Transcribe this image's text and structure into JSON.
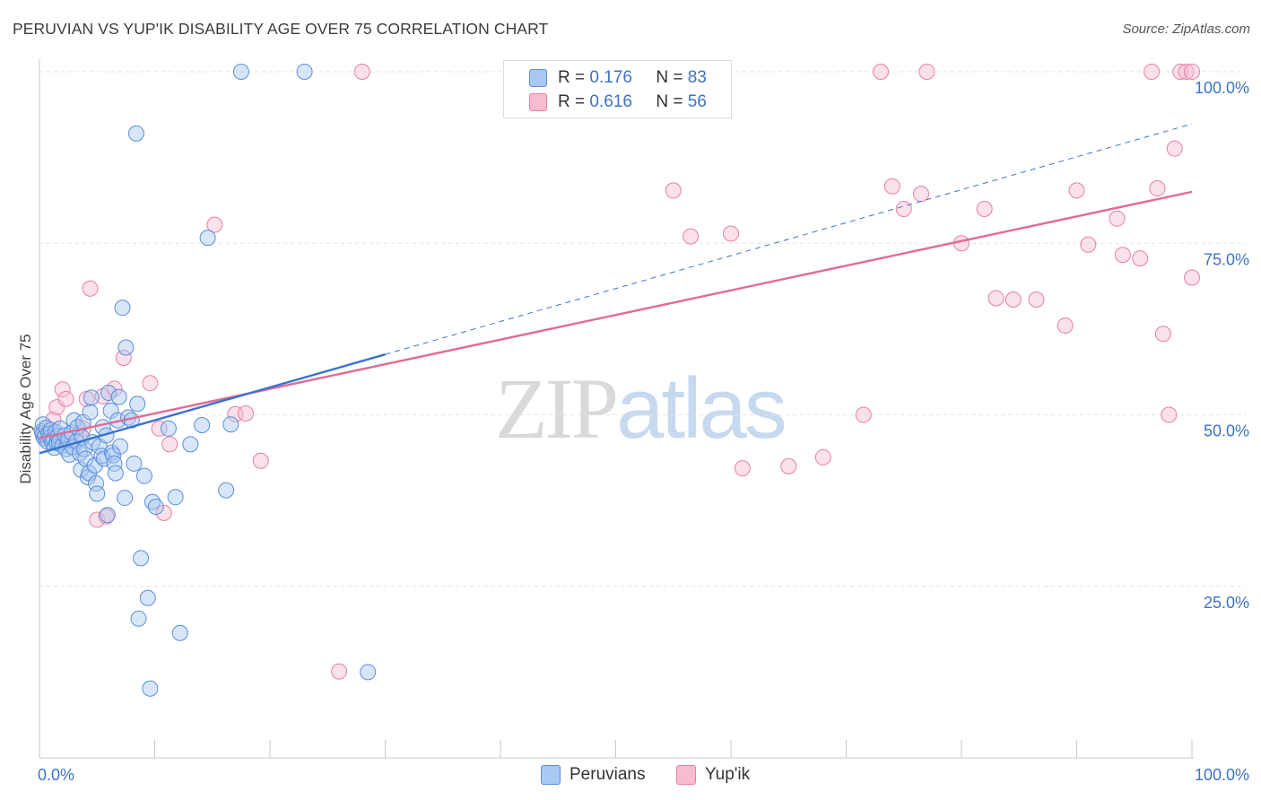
{
  "header": {
    "title": "PERUVIAN VS YUP'IK DISABILITY AGE OVER 75 CORRELATION CHART",
    "source": "Source: ZipAtlas.com"
  },
  "watermark": {
    "zip": "ZIP",
    "atlas": "atlas"
  },
  "legend_top": [
    {
      "r_label": "R =",
      "r_value": "0.176",
      "n_label": "N =",
      "n_value": "83"
    },
    {
      "r_label": "R =",
      "r_value": "0.616",
      "n_label": "N =",
      "n_value": "56"
    }
  ],
  "legend_bottom": [
    "Peruvians",
    "Yup'ik"
  ],
  "chart_data": {
    "type": "scatter",
    "title": "PERUVIAN VS YUP'IK DISABILITY AGE OVER 75 CORRELATION CHART",
    "xlabel": "",
    "ylabel": "Disability Age Over 75",
    "xlim": [
      0,
      100
    ],
    "ylim": [
      0,
      100
    ],
    "x_tick_labels": [
      "0.0%",
      "100.0%"
    ],
    "y_ticks": [
      25,
      50,
      75,
      100
    ],
    "y_tick_labels": [
      "25.0%",
      "50.0%",
      "75.0%",
      "100.0%"
    ],
    "grid": "horizontal dashed",
    "legend_position": "top-center",
    "colors": {
      "Peruvians": "#5b8fd9",
      "Yup'ik": "#e97fa3",
      "peruvians_line": "#3a73d0",
      "yupik_line": "#e26a96"
    },
    "series": [
      {
        "name": "Peruvians",
        "R": 0.176,
        "N": 83,
        "trend": {
          "x_start": 0,
          "y_start": 44.4,
          "x_end": 30,
          "y_end": 58.8,
          "dashed_to_x": 100,
          "dashed_to_y": 92.4
        },
        "points": [
          [
            0.2,
            47.6
          ],
          [
            0.3,
            48.6
          ],
          [
            0.3,
            47.3
          ],
          [
            0.4,
            46.6
          ],
          [
            0.5,
            47.0
          ],
          [
            0.6,
            48.1
          ],
          [
            0.7,
            46.1
          ],
          [
            0.8,
            47.2
          ],
          [
            0.9,
            46.7
          ],
          [
            1.0,
            47.8
          ],
          [
            1.1,
            46.0
          ],
          [
            1.2,
            46.5
          ],
          [
            1.3,
            45.2
          ],
          [
            1.4,
            47.5
          ],
          [
            1.5,
            45.9
          ],
          [
            1.6,
            46.9
          ],
          [
            1.7,
            46.0
          ],
          [
            1.8,
            48.0
          ],
          [
            2.0,
            45.5
          ],
          [
            2.2,
            47.0
          ],
          [
            2.3,
            45.0
          ],
          [
            2.5,
            46.4
          ],
          [
            2.6,
            44.2
          ],
          [
            2.8,
            47.4
          ],
          [
            2.9,
            45.3
          ],
          [
            3.0,
            49.2
          ],
          [
            3.2,
            46.1
          ],
          [
            3.3,
            48.2
          ],
          [
            3.5,
            44.4
          ],
          [
            3.6,
            42.0
          ],
          [
            3.7,
            46.7
          ],
          [
            3.8,
            48.9
          ],
          [
            3.9,
            45.0
          ],
          [
            4.0,
            43.6
          ],
          [
            4.2,
            40.9
          ],
          [
            4.3,
            41.5
          ],
          [
            4.4,
            50.4
          ],
          [
            4.5,
            52.5
          ],
          [
            4.6,
            46.0
          ],
          [
            4.8,
            42.6
          ],
          [
            4.9,
            40.0
          ],
          [
            5.0,
            38.5
          ],
          [
            5.2,
            45.4
          ],
          [
            5.4,
            44.0
          ],
          [
            5.5,
            48.2
          ],
          [
            5.6,
            43.6
          ],
          [
            5.8,
            47.0
          ],
          [
            5.9,
            35.4
          ],
          [
            6.0,
            53.2
          ],
          [
            6.2,
            50.6
          ],
          [
            6.3,
            44.5
          ],
          [
            6.4,
            44.1
          ],
          [
            6.5,
            42.9
          ],
          [
            6.6,
            41.5
          ],
          [
            6.8,
            49.2
          ],
          [
            6.9,
            52.6
          ],
          [
            7.0,
            45.4
          ],
          [
            7.2,
            65.6
          ],
          [
            7.4,
            37.9
          ],
          [
            7.5,
            59.8
          ],
          [
            7.7,
            49.6
          ],
          [
            8.0,
            49.2
          ],
          [
            8.2,
            42.9
          ],
          [
            8.4,
            91.0
          ],
          [
            8.5,
            51.6
          ],
          [
            8.6,
            20.3
          ],
          [
            8.8,
            29.1
          ],
          [
            9.1,
            41.1
          ],
          [
            9.4,
            23.3
          ],
          [
            9.6,
            10.1
          ],
          [
            9.8,
            37.3
          ],
          [
            10.1,
            36.6
          ],
          [
            11.2,
            48.0
          ],
          [
            11.8,
            38.0
          ],
          [
            12.2,
            18.2
          ],
          [
            13.1,
            45.7
          ],
          [
            14.1,
            48.5
          ],
          [
            14.6,
            75.8
          ],
          [
            16.2,
            39.0
          ],
          [
            16.6,
            48.6
          ],
          [
            17.5,
            100
          ],
          [
            23.0,
            100
          ],
          [
            28.5,
            12.5
          ]
        ]
      },
      {
        "name": "Yup'ik",
        "R": 0.616,
        "N": 56,
        "trend": {
          "x_start": 0,
          "y_start": 46.6,
          "x_end": 100,
          "y_end": 82.5
        },
        "points": [
          [
            0.3,
            47.0
          ],
          [
            1.2,
            49.3
          ],
          [
            1.5,
            51.1
          ],
          [
            2.0,
            53.7
          ],
          [
            2.3,
            52.3
          ],
          [
            3.2,
            46.8
          ],
          [
            3.8,
            48.0
          ],
          [
            4.1,
            52.3
          ],
          [
            4.4,
            68.4
          ],
          [
            5.0,
            34.7
          ],
          [
            5.5,
            52.7
          ],
          [
            5.8,
            35.2
          ],
          [
            6.5,
            53.8
          ],
          [
            7.3,
            58.3
          ],
          [
            9.6,
            54.6
          ],
          [
            10.4,
            48.0
          ],
          [
            10.8,
            35.7
          ],
          [
            11.3,
            45.7
          ],
          [
            15.2,
            77.7
          ],
          [
            17.0,
            50.1
          ],
          [
            17.9,
            50.2
          ],
          [
            19.2,
            43.3
          ],
          [
            26.0,
            12.6
          ],
          [
            28.0,
            100
          ],
          [
            55.0,
            82.7
          ],
          [
            56.5,
            76.0
          ],
          [
            60.0,
            76.4
          ],
          [
            61.0,
            42.2
          ],
          [
            65.0,
            42.5
          ],
          [
            68.0,
            43.8
          ],
          [
            71.5,
            50.0
          ],
          [
            73.0,
            100
          ],
          [
            74.0,
            83.3
          ],
          [
            75.0,
            80.0
          ],
          [
            76.5,
            82.2
          ],
          [
            77.0,
            100
          ],
          [
            80.0,
            75.0
          ],
          [
            82.0,
            80.0
          ],
          [
            83.0,
            67.0
          ],
          [
            84.5,
            66.8
          ],
          [
            86.5,
            66.8
          ],
          [
            89.0,
            63.0
          ],
          [
            90.0,
            82.7
          ],
          [
            91.0,
            74.8
          ],
          [
            93.5,
            78.6
          ],
          [
            94.0,
            73.3
          ],
          [
            95.5,
            72.8
          ],
          [
            96.5,
            100
          ],
          [
            97.0,
            83.0
          ],
          [
            97.5,
            61.8
          ],
          [
            98.0,
            50.0
          ],
          [
            98.5,
            88.8
          ],
          [
            99.0,
            100
          ],
          [
            99.5,
            100
          ],
          [
            100.0,
            70.0
          ],
          [
            100.0,
            100
          ]
        ]
      }
    ]
  }
}
